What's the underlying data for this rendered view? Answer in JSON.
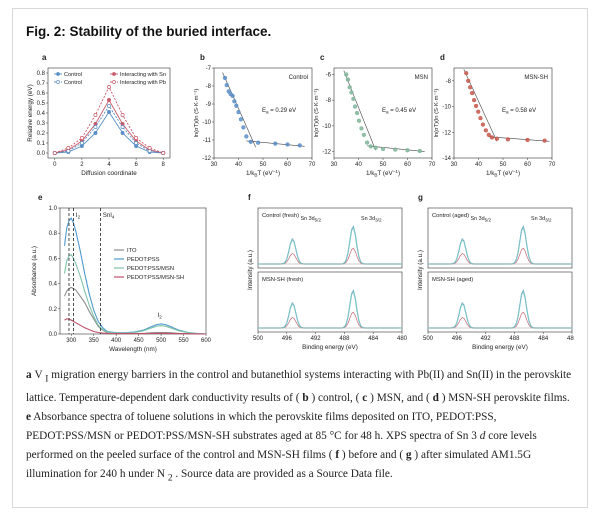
{
  "figure": {
    "title": "Fig. 2: Stability of the buried interface.",
    "caption": {
      "t01": "a ",
      "t02": "V",
      "t03": "I",
      "t04": " migration energy barriers in the control and butanethiol systems interacting with Pb(II) and Sn(II) in the perovskite lattice. Temperature-dependent dark conductivity results of (",
      "t05": "b",
      "t06": ") control, (",
      "t07": "c",
      "t08": ") MSN, and (",
      "t09": "d",
      "t10": ") MSN-SH perovskite films. ",
      "t11": "e",
      "t12": " Absorbance spectra of toluene solutions in which the perovskite films deposited on ITO, PEDOT:PSS, PEDOT:PSS/MSN or PEDOT:PSS/MSN-SH substrates aged at 85 °C for 48 h. XPS spectra of Sn 3",
      "t13": "d",
      "t14": " core levels performed on the peeled surface of the control and MSN-SH films (",
      "t15": "f",
      "t16": ") before and (",
      "t17": "g",
      "t18": ") after simulated AM1.5G illumination for 240 h under N",
      "t19": "2",
      "t20": ". Source data are provided as a Source Data file."
    }
  },
  "colors": {
    "control": "#5b8fc7",
    "interacting": "#c95a6a",
    "msn": "#7fb59a",
    "msnsh_red": "#c8584e",
    "ito": "#8e8e8e",
    "pedot": "#4e9ad0",
    "pedot_msn": "#7fc3a7",
    "pedot_msnsh": "#c0506a"
  },
  "chart_data": [
    {
      "panel": "a",
      "type": "line",
      "xlabel": "Diffusion coordinate",
      "ylabel": "Relative energy (eV)",
      "xlim": [
        -0.5,
        8.5
      ],
      "ylim": [
        -0.05,
        0.85
      ],
      "xticks": [
        "0",
        "2",
        "4",
        "6",
        "8"
      ],
      "yticks": [
        "0.0",
        "0.1",
        "0.2",
        "0.3",
        "0.4",
        "0.5",
        "0.6",
        "0.7",
        "0.8"
      ],
      "x": [
        0,
        1,
        2,
        3,
        4,
        5,
        6,
        7,
        8
      ],
      "legend": [
        "Control",
        "Interacting with Sn",
        "Control",
        "Interacting with Pb"
      ],
      "series": [
        {
          "name": "Control (Sn)",
          "style": "solid",
          "marker": "filled",
          "color": "#5b8fc7",
          "values": [
            0.0,
            0.01,
            0.07,
            0.2,
            0.41,
            0.2,
            0.07,
            0.01,
            0.0
          ]
        },
        {
          "name": "Interacting with Sn",
          "style": "solid",
          "marker": "filled",
          "color": "#c95a6a",
          "values": [
            0.0,
            0.03,
            0.12,
            0.29,
            0.53,
            0.29,
            0.12,
            0.03,
            0.0
          ]
        },
        {
          "name": "Control (Pb)",
          "style": "dashed",
          "marker": "open",
          "color": "#5b8fc7",
          "values": [
            0.0,
            0.02,
            0.1,
            0.26,
            0.47,
            0.26,
            0.1,
            0.02,
            0.0
          ]
        },
        {
          "name": "Interacting with Pb",
          "style": "dashed",
          "marker": "open",
          "color": "#c95a6a",
          "values": [
            0.0,
            0.05,
            0.15,
            0.38,
            0.66,
            0.38,
            0.15,
            0.05,
            0.0
          ]
        }
      ]
    },
    {
      "panel": "b",
      "type": "scatter",
      "label": "Control",
      "annotation": "0.29 eV",
      "ea_prefix": "E",
      "ea_sub": "a",
      "ea_eq": " = ",
      "xlabel": "1/k",
      "xlabel_sub": "B",
      "xlabel_tail": "T (eV",
      "xlabel_sup": "−1",
      "xlabel_close": ")",
      "ylabel": "ln(σT)(ln (S·K·m⁻¹)",
      "xlim": [
        30,
        70
      ],
      "ylim": [
        -12,
        -7
      ],
      "xticks": [
        "30",
        "40",
        "50",
        "60",
        "70"
      ],
      "yticks": [
        "-12",
        "-11",
        "-10",
        "-9",
        "-8",
        "-7"
      ],
      "color": "#5b8fc7",
      "x": [
        34.5,
        35.2,
        36.0,
        36.8,
        37.6,
        38.3,
        39.1,
        40.0,
        41.0,
        42.0,
        43.2,
        45.0,
        48.0,
        55.0,
        60.0,
        65.0
      ],
      "y": [
        -7.55,
        -7.95,
        -8.3,
        -8.45,
        -8.55,
        -8.85,
        -9.1,
        -9.45,
        -9.85,
        -10.3,
        -10.8,
        -11.1,
        -11.15,
        -11.2,
        -11.25,
        -11.3
      ]
    },
    {
      "panel": "c",
      "type": "scatter",
      "label": "MSN",
      "annotation": "0.45 eV",
      "ea_prefix": "E",
      "ea_sub": "a",
      "ea_eq": " = ",
      "xlabel": "1/k",
      "xlabel_sub": "B",
      "xlabel_tail": "T (eV",
      "xlabel_sup": "−1",
      "xlabel_close": ")",
      "ylabel": "ln(σT)(ln (S·K·m⁻¹)",
      "xlim": [
        30,
        70
      ],
      "ylim": [
        -12.5,
        -5.5
      ],
      "xticks": [
        "30",
        "40",
        "50",
        "60",
        "70"
      ],
      "yticks": [
        "-12",
        "-10",
        "-8",
        "-6"
      ],
      "color": "#7fb59a",
      "x": [
        35.0,
        35.7,
        36.4,
        37.1,
        37.9,
        38.6,
        39.4,
        40.2,
        41.2,
        42.2,
        43.5,
        45.0,
        47.0,
        50.0,
        55.0,
        60.0,
        65.0
      ],
      "y": [
        -6.0,
        -6.4,
        -7.0,
        -7.4,
        -7.9,
        -8.5,
        -9.0,
        -9.6,
        -10.2,
        -10.7,
        -11.3,
        -11.6,
        -11.7,
        -11.8,
        -11.85,
        -11.9,
        -11.95
      ]
    },
    {
      "panel": "d",
      "type": "scatter",
      "label": "MSN-SH",
      "annotation": "0.58 eV",
      "ea_prefix": "E",
      "ea_sub": "a",
      "ea_eq": " = ",
      "xlabel": "1/k",
      "xlabel_sub": "B",
      "xlabel_tail": "T (eV",
      "xlabel_sup": "−1",
      "xlabel_close": ")",
      "ylabel": "ln(σT)(ln (S·K·m⁻¹)",
      "xlim": [
        30,
        70
      ],
      "ylim": [
        -14,
        -7
      ],
      "xticks": [
        "30",
        "40",
        "50",
        "60",
        "70"
      ],
      "yticks": [
        "-14",
        "-12",
        "-10",
        "-8"
      ],
      "color": "#c8584e",
      "x": [
        35.0,
        35.8,
        36.6,
        37.4,
        38.2,
        39.0,
        39.9,
        40.8,
        41.8,
        43.0,
        44.2,
        45.5,
        47.5,
        52.0,
        60.0,
        67.0
      ],
      "y": [
        -7.4,
        -8.0,
        -8.5,
        -8.95,
        -9.5,
        -9.95,
        -10.4,
        -10.9,
        -11.4,
        -11.85,
        -12.2,
        -12.4,
        -12.5,
        -12.55,
        -12.6,
        -12.65
      ]
    },
    {
      "panel": "e",
      "type": "line",
      "xlabel": "Wavelength (nm)",
      "ylabel": "Absorbance (a.u.)",
      "xlim": [
        275,
        600
      ],
      "ylim": [
        0,
        1.0
      ],
      "xticks": [
        "300",
        "350",
        "400",
        "450",
        "500",
        "550",
        "600"
      ],
      "yticks": [
        "0.0",
        "0.2",
        "0.4",
        "0.6",
        "0.8",
        "1.0"
      ],
      "annotations": [
        "I",
        "SnI",
        "I"
      ],
      "annotation_sub": [
        "2",
        "4",
        "2"
      ],
      "legend": [
        "ITO",
        "PEDOT:PSS",
        "PEDOT:PSS/MSN",
        "PEDOT:PSS/MSN-SH"
      ],
      "x": [
        285,
        290,
        295,
        300,
        305,
        310,
        320,
        330,
        340,
        350,
        360,
        370,
        380,
        400,
        420,
        440,
        460,
        480,
        490,
        500,
        510,
        520,
        540,
        560,
        580,
        600
      ],
      "series": [
        {
          "name": "ITO",
          "color": "#8e8e8e",
          "values": [
            0.3,
            0.34,
            0.36,
            0.37,
            0.36,
            0.35,
            0.3,
            0.25,
            0.18,
            0.12,
            0.06,
            0.03,
            0.01,
            0.005,
            0.005,
            0.005,
            0.005,
            0.01,
            0.012,
            0.012,
            0.012,
            0.01,
            0.005,
            0.003,
            0.002,
            0.0
          ]
        },
        {
          "name": "PEDOT:PSS",
          "color": "#4e9ad0",
          "values": [
            0.7,
            0.84,
            0.9,
            0.92,
            0.88,
            0.82,
            0.66,
            0.48,
            0.32,
            0.19,
            0.1,
            0.05,
            0.02,
            0.01,
            0.01,
            0.015,
            0.03,
            0.06,
            0.075,
            0.08,
            0.075,
            0.06,
            0.03,
            0.012,
            0.005,
            0.0
          ]
        },
        {
          "name": "PEDOT:PSS/MSN",
          "color": "#7fc3a7",
          "values": [
            0.48,
            0.58,
            0.62,
            0.63,
            0.6,
            0.56,
            0.46,
            0.34,
            0.23,
            0.14,
            0.07,
            0.035,
            0.015,
            0.008,
            0.008,
            0.012,
            0.025,
            0.05,
            0.062,
            0.066,
            0.062,
            0.05,
            0.025,
            0.01,
            0.004,
            0.0
          ]
        },
        {
          "name": "PEDOT:PSS/MSN-SH",
          "color": "#c0506a",
          "values": [
            0.11,
            0.12,
            0.12,
            0.11,
            0.1,
            0.09,
            0.07,
            0.05,
            0.035,
            0.02,
            0.012,
            0.008,
            0.005,
            0.003,
            0.003,
            0.003,
            0.003,
            0.004,
            0.005,
            0.005,
            0.005,
            0.004,
            0.003,
            0.002,
            0.001,
            0.0
          ]
        }
      ]
    },
    {
      "panel": "f",
      "type": "line",
      "xlabel": "Binding energy (eV)",
      "ylabel": "Intensity (a.u.)",
      "xlim": [
        500,
        480
      ],
      "xticks": [
        "500",
        "496",
        "492",
        "488",
        "484",
        "480"
      ],
      "subplots": [
        {
          "label": "Control (fresh)",
          "peak_labels": [
            "Sn 3d",
            "Sn 3d"
          ],
          "peak_subs": [
            "5/2",
            "3/2"
          ],
          "peak_positions": [
            495.2,
            486.8
          ],
          "peak_heights": [
            0.55,
            0.82
          ]
        },
        {
          "label": "MSN-SH (fresh)",
          "peak_labels": [],
          "peak_subs": [],
          "peak_positions": [
            495.2,
            486.8
          ],
          "peak_heights": [
            0.55,
            0.82
          ]
        }
      ]
    },
    {
      "panel": "g",
      "type": "line",
      "xlabel": "Binding energy (eV)",
      "ylabel": "Intensity (a.u.)",
      "xlim": [
        500,
        480
      ],
      "xticks": [
        "500",
        "496",
        "492",
        "488",
        "484",
        "480"
      ],
      "subplots": [
        {
          "label": "Control (aged)",
          "peak_labels": [
            "Sn 3d",
            "Sn 3d"
          ],
          "peak_subs": [
            "5/2",
            "3/2"
          ],
          "peak_positions": [
            495.2,
            486.8
          ],
          "peak_heights": [
            0.55,
            0.82
          ]
        },
        {
          "label": "MSN-SH (aged)",
          "peak_labels": [],
          "peak_subs": [],
          "peak_positions": [
            495.2,
            486.8
          ],
          "peak_heights": [
            0.55,
            0.82
          ]
        }
      ]
    }
  ]
}
